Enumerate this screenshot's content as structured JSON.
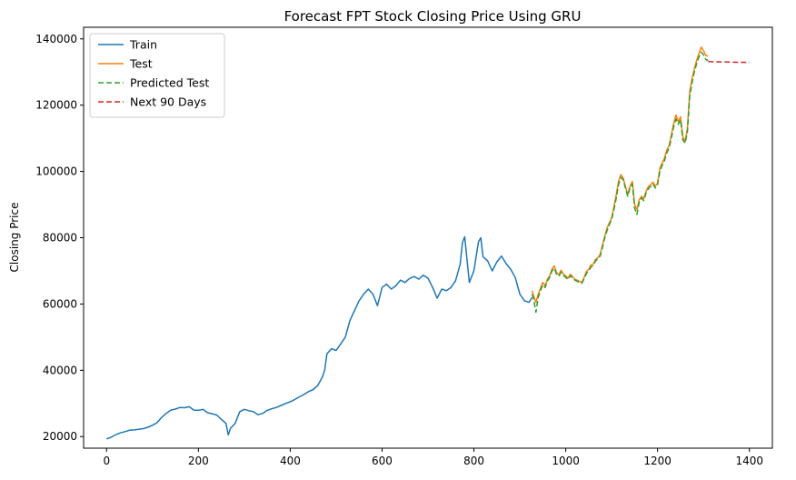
{
  "chart_data": {
    "type": "line",
    "title": "Forecast FPT Stock Closing Price Using GRU",
    "xlabel": "",
    "ylabel": "Closing Price",
    "xlim": [
      -50,
      1450
    ],
    "ylim": [
      16500,
      143500
    ],
    "xticks": [
      0,
      200,
      400,
      600,
      800,
      1000,
      1200,
      1400
    ],
    "yticks": [
      20000,
      40000,
      60000,
      80000,
      100000,
      120000,
      140000
    ],
    "grid": false,
    "legend_position": "top-left",
    "series": [
      {
        "name": "Train",
        "color": "#1f77b4",
        "style": "solid",
        "x": [
          0,
          10,
          20,
          30,
          40,
          50,
          60,
          70,
          80,
          90,
          100,
          110,
          120,
          130,
          140,
          150,
          160,
          170,
          180,
          190,
          200,
          210,
          220,
          230,
          240,
          250,
          260,
          265,
          270,
          280,
          290,
          300,
          310,
          320,
          330,
          340,
          350,
          360,
          370,
          380,
          390,
          400,
          410,
          420,
          430,
          440,
          450,
          460,
          470,
          475,
          480,
          490,
          500,
          510,
          520,
          530,
          540,
          550,
          560,
          570,
          580,
          590,
          600,
          610,
          620,
          630,
          640,
          650,
          660,
          670,
          680,
          690,
          700,
          710,
          720,
          730,
          740,
          750,
          760,
          770,
          775,
          780,
          790,
          800,
          810,
          815,
          820,
          830,
          840,
          850,
          860,
          870,
          880,
          890,
          900,
          910,
          920,
          927
        ],
        "values": [
          19300,
          19800,
          20600,
          21100,
          21500,
          21900,
          22000,
          22200,
          22400,
          22800,
          23400,
          24200,
          25800,
          27000,
          28000,
          28300,
          28800,
          28700,
          29000,
          28000,
          27900,
          28200,
          27200,
          26900,
          26500,
          25200,
          24000,
          20500,
          22500,
          24000,
          27500,
          28200,
          27800,
          27500,
          26600,
          27000,
          27900,
          28400,
          28800,
          29400,
          30000,
          30500,
          31200,
          32000,
          32700,
          33600,
          34200,
          35400,
          38000,
          40000,
          45000,
          46500,
          46000,
          48000,
          50000,
          55000,
          58000,
          61000,
          63000,
          64500,
          63000,
          59500,
          65000,
          66000,
          64500,
          65500,
          67200,
          66500,
          67700,
          68300,
          67500,
          68700,
          67800,
          65000,
          61800,
          64500,
          64000,
          65000,
          67000,
          72000,
          78500,
          80300,
          66500,
          70000,
          78800,
          80000,
          74200,
          73000,
          70000,
          72700,
          74500,
          72200,
          70500,
          68000,
          63000,
          61000,
          60500,
          62000
        ]
      },
      {
        "name": "Test",
        "color": "#ff7f0e",
        "style": "solid",
        "x": [
          927,
          930,
          935,
          940,
          945,
          950,
          955,
          960,
          965,
          970,
          975,
          980,
          985,
          990,
          995,
          1000,
          1005,
          1010,
          1015,
          1020,
          1025,
          1030,
          1035,
          1040,
          1045,
          1050,
          1055,
          1060,
          1065,
          1070,
          1075,
          1080,
          1085,
          1090,
          1095,
          1100,
          1105,
          1110,
          1115,
          1120,
          1125,
          1130,
          1135,
          1140,
          1145,
          1150,
          1155,
          1160,
          1165,
          1170,
          1175,
          1180,
          1185,
          1190,
          1195,
          1200,
          1205,
          1210,
          1215,
          1220,
          1225,
          1230,
          1235,
          1240,
          1245,
          1250,
          1255,
          1260,
          1265,
          1270,
          1275,
          1280,
          1285,
          1290,
          1295,
          1300,
          1305,
          1310
        ],
        "values": [
          64000,
          62500,
          60500,
          63000,
          64800,
          66500,
          65500,
          67500,
          68500,
          70500,
          71500,
          69500,
          68800,
          70200,
          69000,
          68500,
          67800,
          69000,
          68200,
          67500,
          67200,
          66800,
          66500,
          68000,
          69800,
          70500,
          71800,
          72000,
          73500,
          74000,
          75000,
          77800,
          80500,
          83000,
          84500,
          86000,
          89500,
          93000,
          97000,
          99000,
          98000,
          95500,
          93000,
          95500,
          97000,
          90000,
          88500,
          91500,
          92500,
          91800,
          94000,
          95500,
          96000,
          96800,
          95500,
          96500,
          101000,
          102500,
          104000,
          106500,
          107800,
          111000,
          114500,
          117000,
          115000,
          116500,
          110500,
          109000,
          113000,
          124000,
          128000,
          131000,
          133500,
          135500,
          137500,
          136500,
          135000,
          134800
        ]
      },
      {
        "name": "Predicted Test",
        "color": "#2ca02c",
        "style": "dashed",
        "x": [
          927,
          930,
          935,
          940,
          945,
          950,
          955,
          960,
          965,
          970,
          975,
          980,
          985,
          990,
          995,
          1000,
          1005,
          1010,
          1015,
          1020,
          1025,
          1030,
          1035,
          1040,
          1045,
          1050,
          1055,
          1060,
          1065,
          1070,
          1075,
          1080,
          1085,
          1090,
          1095,
          1100,
          1105,
          1110,
          1115,
          1120,
          1125,
          1130,
          1135,
          1140,
          1145,
          1150,
          1155,
          1160,
          1165,
          1170,
          1175,
          1180,
          1185,
          1190,
          1195,
          1200,
          1205,
          1210,
          1215,
          1220,
          1225,
          1230,
          1235,
          1240,
          1245,
          1250,
          1255,
          1260,
          1265,
          1270,
          1275,
          1280,
          1285,
          1290,
          1295,
          1300,
          1305,
          1310
        ],
        "values": [
          63000,
          61500,
          57500,
          62000,
          64000,
          65800,
          65000,
          67000,
          68000,
          70000,
          70800,
          69000,
          68400,
          69600,
          68600,
          68000,
          67400,
          68600,
          67800,
          67200,
          66900,
          66400,
          66200,
          67600,
          69200,
          70000,
          71200,
          71600,
          73000,
          73600,
          74500,
          77000,
          80000,
          82200,
          84000,
          85500,
          88500,
          92000,
          96000,
          98200,
          97500,
          95000,
          92500,
          95000,
          96200,
          89000,
          87000,
          90800,
          92000,
          91200,
          93500,
          94800,
          95500,
          96200,
          95000,
          96000,
          100000,
          101800,
          103200,
          105600,
          107000,
          110000,
          113500,
          115800,
          114200,
          115600,
          109500,
          108500,
          112000,
          122500,
          126800,
          130000,
          132500,
          134500,
          136000,
          135200,
          133800,
          133500
        ]
      },
      {
        "name": "Next 90 Days",
        "color": "#d62728",
        "style": "dashed",
        "x": [
          1310,
          1320,
          1340,
          1360,
          1380,
          1400
        ],
        "values": [
          133200,
          133100,
          133050,
          133000,
          132950,
          132900
        ]
      }
    ]
  }
}
